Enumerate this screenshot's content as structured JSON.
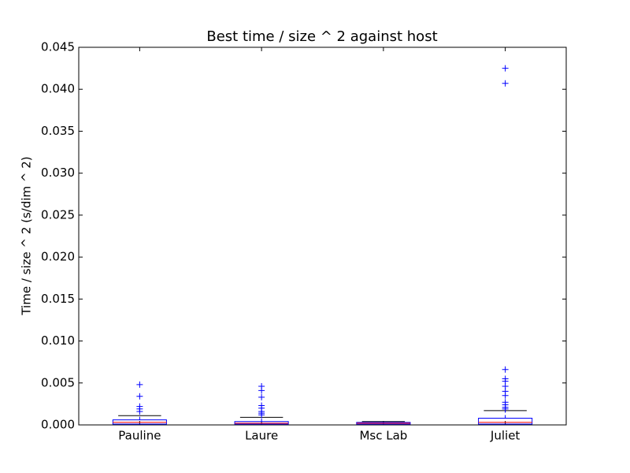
{
  "chart_data": {
    "type": "box",
    "title": "Best time / size ^ 2 against host",
    "y_label": "Time / size ^ 2 (s/dim ^ 2)",
    "categories": [
      "Pauline",
      "Laure",
      "Msc Lab",
      "Juliet"
    ],
    "boxes": [
      {
        "low": 0.0,
        "q1": 0.0001,
        "median": 0.0003,
        "q3": 0.0006,
        "high": 0.0011,
        "outliers": [
          0.0048,
          0.0034,
          0.0022,
          0.0019,
          0.0016
        ]
      },
      {
        "low": 0.0,
        "q1": 0.0001,
        "median": 0.0002,
        "q3": 0.0004,
        "high": 0.0009,
        "outliers": [
          0.0046,
          0.0041,
          0.0033,
          0.0023,
          0.002,
          0.0016,
          0.0014,
          0.0012
        ]
      },
      {
        "low": 0.0,
        "q1": 0.0001,
        "median": 0.0002,
        "q3": 0.0003,
        "high": 0.0004,
        "outliers": []
      },
      {
        "low": 0.0,
        "q1": 0.0001,
        "median": 0.0003,
        "q3": 0.0008,
        "high": 0.0017,
        "outliers": [
          0.0425,
          0.0407,
          0.0066,
          0.0055,
          0.0052,
          0.0046,
          0.004,
          0.0035,
          0.0027,
          0.0024,
          0.0021,
          0.0019
        ]
      }
    ],
    "box_color": "#0000ff",
    "median_color": "#ff0000",
    "cap_color": "#000000",
    "ylim": [
      0,
      0.045
    ],
    "yticks": [
      {
        "value": 0,
        "label": "0.000"
      },
      0.005,
      {
        "value": 0.01,
        "label": "0.010"
      },
      0.015,
      {
        "value": 0.02,
        "label": "0.020"
      },
      0.025,
      {
        "value": 0.03,
        "label": "0.030"
      },
      0.035,
      {
        "value": 0.04,
        "label": "0.040"
      },
      0.045
    ]
  }
}
